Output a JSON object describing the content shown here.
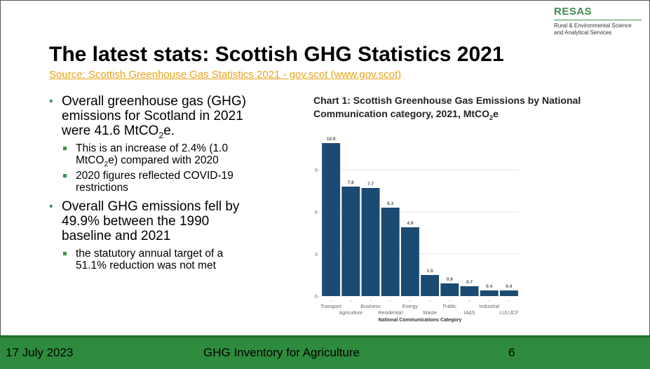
{
  "logo": {
    "title": "RESAS",
    "subtitle_line1": "Rural & Environmental Science",
    "subtitle_line2": "and Analytical Services"
  },
  "slide": {
    "title": "The latest stats: Scottish GHG Statistics 2021",
    "source_link": "Source: Scottish Greenhouse Gas Statistics 2021 - gov.scot (www.gov.scot)"
  },
  "bullets": {
    "b1_pre": "Overall greenhouse gas (GHG) emissions for Scotland in 2021 were 41.6 MtCO",
    "b1_sub": "2",
    "b1_post": "e.",
    "b1a_pre": "This is an increase of 2.4% (1.0 MtCO",
    "b1a_sub": "2",
    "b1a_post": "e) compared with 2020",
    "b1b": "2020 figures reflected COVID-19 restrictions",
    "b2": "Overall GHG emissions fell by 49.9% between the 1990 baseline and 2021",
    "b2a": "the statutory annual target of a 51.1% reduction was not met"
  },
  "chart_title": {
    "line1": "Chart 1: Scottish Greenhouse Gas Emissions by National",
    "line2_pre": "Communication category, 2021, MtCO",
    "line2_sub": "2",
    "line2_post": "e"
  },
  "chart_data": {
    "type": "bar",
    "title": "Chart 1: Scottish Greenhouse Gas Emissions by National Communication category, 2021, MtCO2e",
    "categories": [
      "Transport",
      "Agriculture",
      "Business",
      "Residential",
      "Energy",
      "Waste",
      "Public",
      "IA&S",
      "Industrial",
      "LULUCF"
    ],
    "values": [
      10.9,
      7.8,
      7.7,
      6.3,
      4.9,
      1.5,
      0.9,
      0.7,
      0.4,
      0.4
    ],
    "data_labels": [
      "10.9",
      "7.8",
      "7.7",
      "6.3",
      "4.9",
      "1.5",
      "0.9",
      "0.7",
      "0.4",
      "0.4"
    ],
    "xlabel": "National Communications Category",
    "ylabel": "",
    "yticks": [
      0,
      3,
      6,
      9
    ],
    "ytick_labels": [
      "0-",
      "3-",
      "6-",
      "9-"
    ],
    "ylim": [
      0,
      11.6
    ],
    "grid": true,
    "bar_color": "#1b4a72"
  },
  "footer": {
    "date": "17 July 2023",
    "center": "GHG Inventory for Agriculture",
    "page": "6"
  },
  "colors": {
    "accent_green": "#3e8e4f",
    "footer_green": "#2e8b3e",
    "link": "#e8a317"
  }
}
